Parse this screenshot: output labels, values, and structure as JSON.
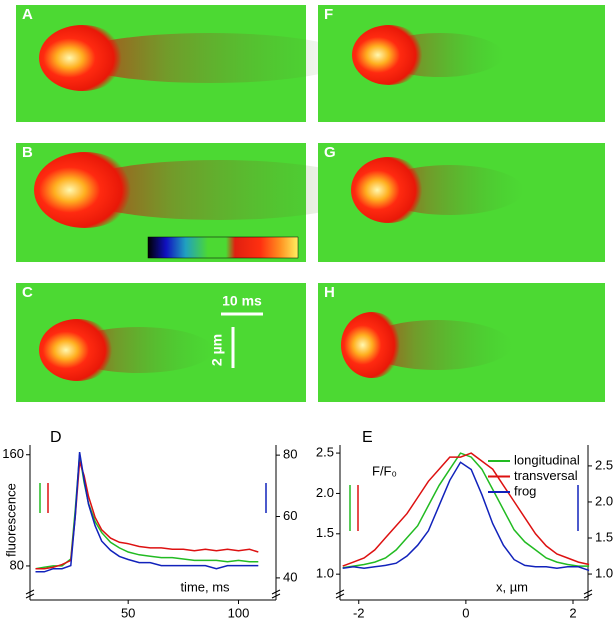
{
  "panels": [
    "A",
    "B",
    "C",
    "F",
    "G",
    "H"
  ],
  "scale_bars": {
    "time": "10 ms",
    "space": "2 µm"
  },
  "chart_data": [
    {
      "type": "line",
      "title": "D",
      "x_label": "time, ms",
      "y_label": "fluorescence",
      "x": [
        8,
        12,
        16,
        20,
        24,
        26,
        28,
        30,
        32,
        35,
        38,
        42,
        46,
        50,
        55,
        60,
        65,
        70,
        75,
        80,
        85,
        90,
        95,
        100,
        105,
        109
      ],
      "xlim": [
        5.5,
        117
      ],
      "xticks": [
        50,
        100
      ],
      "ylim": [
        55.5,
        167
      ],
      "yticks": [
        80,
        160
      ],
      "y2lim": [
        32.8,
        83.3
      ],
      "y2ticks": [
        40,
        60,
        80
      ],
      "series": [
        {
          "name": "longitudinal",
          "color": "#22bb22",
          "values": [
            78,
            79,
            80,
            80,
            85,
            120,
            160,
            140,
            125,
            112,
            104,
            97,
            93,
            90,
            88,
            87,
            86,
            86,
            85,
            84,
            84,
            84,
            83,
            84,
            83,
            83
          ]
        },
        {
          "name": "transversal",
          "color": "#dd1111",
          "values": [
            78,
            78,
            79,
            81,
            84,
            115,
            155,
            145,
            130,
            115,
            106,
            100,
            97,
            96,
            94,
            93,
            93,
            92,
            92,
            91,
            92,
            91,
            92,
            91,
            92,
            90
          ]
        },
        {
          "name": "frog",
          "color": "#1122bb",
          "axis": "y2",
          "values": [
            42,
            42,
            43,
            43,
            44,
            60,
            81,
            72,
            64,
            57,
            52,
            49,
            47,
            46,
            45,
            45,
            44,
            44,
            44,
            44,
            44,
            43,
            44,
            44,
            44,
            44
          ]
        }
      ]
    },
    {
      "type": "line",
      "title": "E",
      "x_label": "x, µm",
      "y_label": "F/F₀",
      "legend": "upper right",
      "x": [
        -2.3,
        -2.1,
        -1.9,
        -1.7,
        -1.5,
        -1.3,
        -1.1,
        -0.9,
        -0.7,
        -0.5,
        -0.3,
        -0.1,
        0.1,
        0.3,
        0.5,
        0.7,
        0.9,
        1.1,
        1.3,
        1.5,
        1.7,
        1.9,
        2.1,
        2.3
      ],
      "xlim": [
        -2.35,
        2.28
      ],
      "xticks": [
        -2,
        0,
        2
      ],
      "ylim": [
        0.68,
        2.6
      ],
      "yticks": [
        {
          "value": 1,
          "label": "1.0"
        },
        {
          "value": 1.5,
          "label": "1.5"
        },
        {
          "value": 2,
          "label": "2.0"
        },
        {
          "value": 2.5,
          "label": "2.5"
        }
      ],
      "y2lim": [
        0.64,
        2.79
      ],
      "y2ticks": [
        {
          "value": 1,
          "label": "1.0"
        },
        {
          "value": 1.5,
          "label": "1.5"
        },
        {
          "value": 2,
          "label": "2.0"
        },
        {
          "value": 2.5,
          "label": "2.5"
        }
      ],
      "series": [
        {
          "name": "longitudinal",
          "color": "#22bb22",
          "values": [
            1.08,
            1.1,
            1.12,
            1.15,
            1.2,
            1.3,
            1.45,
            1.6,
            1.85,
            2.1,
            2.3,
            2.5,
            2.45,
            2.3,
            2.05,
            1.8,
            1.55,
            1.4,
            1.3,
            1.2,
            1.15,
            1.12,
            1.1,
            1.1
          ]
        },
        {
          "name": "transversal",
          "color": "#dd1111",
          "values": [
            1.1,
            1.15,
            1.2,
            1.3,
            1.45,
            1.6,
            1.75,
            1.95,
            2.15,
            2.3,
            2.45,
            2.45,
            2.5,
            2.4,
            2.3,
            2.1,
            1.9,
            1.7,
            1.5,
            1.35,
            1.25,
            1.2,
            1.15,
            1.12
          ]
        },
        {
          "name": "frog",
          "color": "#1122bb",
          "axis": "y2",
          "values": [
            1.08,
            1.1,
            1.08,
            1.1,
            1.12,
            1.15,
            1.25,
            1.4,
            1.6,
            1.95,
            2.3,
            2.55,
            2.45,
            2.1,
            1.7,
            1.4,
            1.2,
            1.12,
            1.1,
            1.1,
            1.08,
            1.1,
            1.1,
            1.05
          ]
        }
      ]
    }
  ]
}
